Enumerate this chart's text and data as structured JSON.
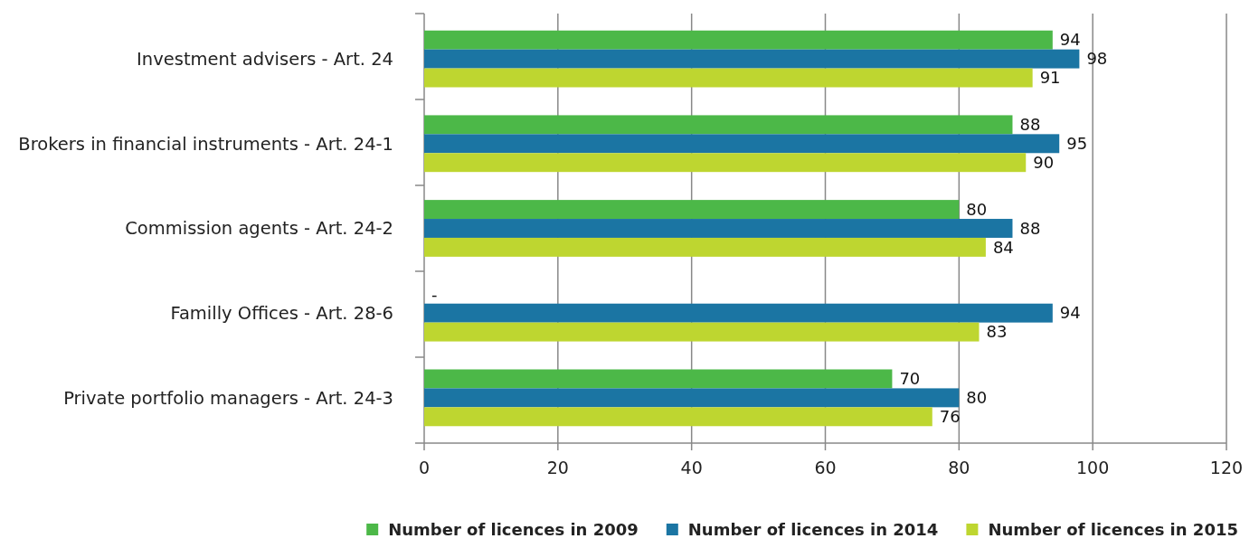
{
  "chart_data": {
    "type": "bar",
    "orientation": "horizontal",
    "categories": [
      "Investment advisers - Art. 24",
      "Brokers in financial instruments - Art. 24-1",
      "Commission agents - Art. 24-2",
      "Familly Offices - Art. 28-6",
      "Private portfolio managers - Art. 24-3"
    ],
    "series": [
      {
        "name": "Number of licences in 2009",
        "color": "#4cb848",
        "values": [
          94,
          88,
          80,
          null,
          70
        ],
        "value_labels": [
          "94",
          "88",
          "80",
          "-",
          "70"
        ]
      },
      {
        "name": "Number of licences in 2014",
        "color": "#1b75a3",
        "values": [
          98,
          95,
          88,
          94,
          80
        ],
        "value_labels": [
          "98",
          "95",
          "88",
          "94",
          "80"
        ]
      },
      {
        "name": "Number of licences in 2015",
        "color": "#bed630",
        "values": [
          91,
          90,
          84,
          83,
          76
        ],
        "value_labels": [
          "91",
          "90",
          "84",
          "83",
          "76"
        ]
      }
    ],
    "xlim": [
      0,
      120
    ],
    "xticks": [
      0,
      20,
      40,
      60,
      80,
      100,
      120
    ],
    "grid": "x",
    "legend": "bottom"
  }
}
